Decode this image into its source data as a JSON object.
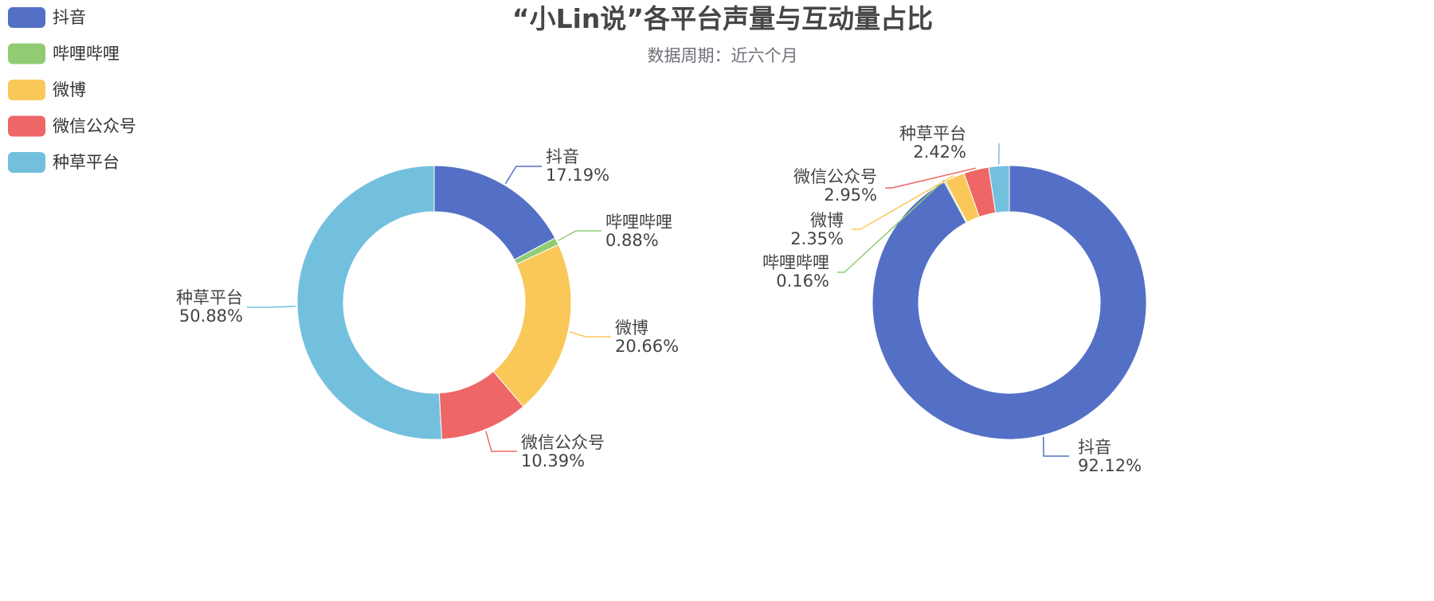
{
  "title": "“小Lin说”各平台声量与互动量占比",
  "subtitle": "数据周期：近六个月",
  "colors": {
    "抖音": "#5470c6",
    "哔哩哔哩": "#91cc75",
    "微博": "#fac858",
    "微信公众号": "#ee6666",
    "种草平台": "#73c0de"
  },
  "legend": {
    "position": "top-left",
    "orientation": "vertical",
    "items": [
      "抖音",
      "哔哩哔哩",
      "微博",
      "微信公众号",
      "种草平台"
    ]
  },
  "chart_data": [
    {
      "type": "pie",
      "donut": true,
      "categories": [
        "抖音",
        "哔哩哔哩",
        "微博",
        "微信公众号",
        "种草平台"
      ],
      "values": [
        17.19,
        0.88,
        20.66,
        10.39,
        50.88
      ],
      "labels": [
        "17.19%",
        "0.88%",
        "20.66%",
        "10.39%",
        "50.88%"
      ]
    },
    {
      "type": "pie",
      "donut": true,
      "categories": [
        "抖音",
        "哔哩哔哩",
        "微博",
        "微信公众号",
        "种草平台"
      ],
      "values": [
        92.12,
        0.16,
        2.35,
        2.95,
        2.42
      ],
      "labels": [
        "92.12%",
        "0.16%",
        "2.35%",
        "2.95%",
        "2.42%"
      ]
    }
  ]
}
